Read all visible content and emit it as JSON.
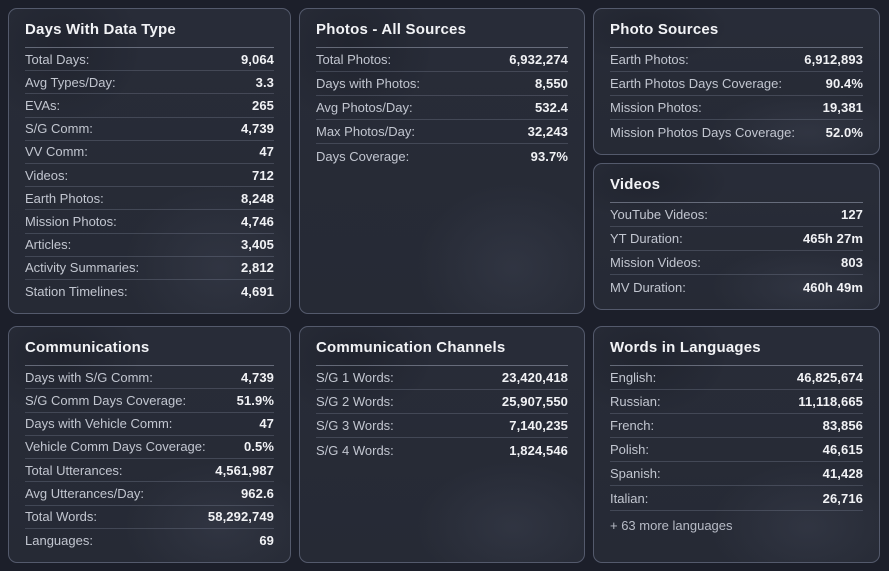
{
  "theme": {
    "page_background": "#1c1f2a",
    "panel_background": "#272b36",
    "panel_border": "#545a6c",
    "title_color": "#f2f3f6",
    "label_color": "#c2c6d0",
    "value_color": "#f1f2f5",
    "divider_color": "rgba(168,176,200,0.22)"
  },
  "panels": [
    {
      "title": "Days With Data Type",
      "rows": [
        {
          "label": "Total Days:",
          "value": "9,064"
        },
        {
          "label": "Avg Types/Day:",
          "value": "3.3"
        },
        {
          "label": "EVAs:",
          "value": "265"
        },
        {
          "label": "S/G Comm:",
          "value": "4,739"
        },
        {
          "label": "VV Comm:",
          "value": "47"
        },
        {
          "label": "Videos:",
          "value": "712"
        },
        {
          "label": "Earth Photos:",
          "value": "8,248"
        },
        {
          "label": "Mission Photos:",
          "value": "4,746"
        },
        {
          "label": "Articles:",
          "value": "3,405"
        },
        {
          "label": "Activity Summaries:",
          "value": "2,812"
        },
        {
          "label": "Station Timelines:",
          "value": "4,691"
        }
      ]
    },
    {
      "title": "Photos - All Sources",
      "rows": [
        {
          "label": "Total Photos:",
          "value": "6,932,274"
        },
        {
          "label": "Days with Photos:",
          "value": "8,550"
        },
        {
          "label": "Avg Photos/Day:",
          "value": "532.4"
        },
        {
          "label": "Max Photos/Day:",
          "value": "32,243"
        },
        {
          "label": "Days Coverage:",
          "value": "93.7%"
        }
      ]
    },
    {
      "title": "Photo Sources",
      "rows": [
        {
          "label": "Earth Photos:",
          "value": "6,912,893"
        },
        {
          "label": "Earth Photos Days Coverage:",
          "value": "90.4%"
        },
        {
          "label": "Mission Photos:",
          "value": "19,381"
        },
        {
          "label": "Mission Photos Days Coverage:",
          "value": "52.0%"
        }
      ]
    },
    {
      "title": "Videos",
      "rows": [
        {
          "label": "YouTube Videos:",
          "value": "127"
        },
        {
          "label": "YT Duration:",
          "value": "465h 27m"
        },
        {
          "label": "Mission Videos:",
          "value": "803"
        },
        {
          "label": "MV Duration:",
          "value": "460h 49m"
        }
      ]
    },
    {
      "title": "Communications",
      "rows": [
        {
          "label": "Days with S/G Comm:",
          "value": "4,739"
        },
        {
          "label": "S/G Comm Days Coverage:",
          "value": "51.9%"
        },
        {
          "label": "Days with Vehicle Comm:",
          "value": "47"
        },
        {
          "label": "Vehicle Comm Days Coverage:",
          "value": "0.5%"
        },
        {
          "label": "Total Utterances:",
          "value": "4,561,987"
        },
        {
          "label": "Avg Utterances/Day:",
          "value": "962.6"
        },
        {
          "label": "Total Words:",
          "value": "58,292,749"
        },
        {
          "label": "Languages:",
          "value": "69"
        }
      ]
    },
    {
      "title": "Communication Channels",
      "rows": [
        {
          "label": "S/G 1 Words:",
          "value": "23,420,418"
        },
        {
          "label": "S/G 2 Words:",
          "value": "25,907,550"
        },
        {
          "label": "S/G 3 Words:",
          "value": "7,140,235"
        },
        {
          "label": "S/G 4 Words:",
          "value": "1,824,546"
        }
      ]
    },
    {
      "title": "Words in Languages",
      "rows": [
        {
          "label": "English:",
          "value": "46,825,674"
        },
        {
          "label": "Russian:",
          "value": "11,118,665"
        },
        {
          "label": "French:",
          "value": "83,856"
        },
        {
          "label": "Polish:",
          "value": "46,615"
        },
        {
          "label": "Spanish:",
          "value": "41,428"
        },
        {
          "label": "Italian:",
          "value": "26,716"
        }
      ],
      "footer": "+ 63 more languages"
    }
  ]
}
